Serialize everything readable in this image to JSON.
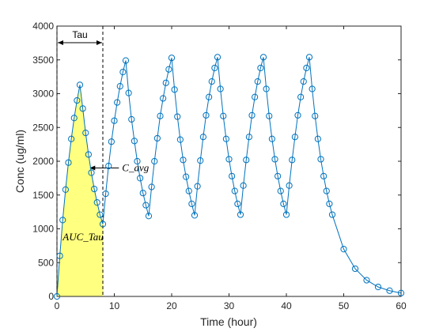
{
  "chart_data": {
    "type": "line",
    "title": "",
    "xlabel": "Time (hour)",
    "ylabel": "Conc (ug/ml)",
    "xlim": [
      0,
      60
    ],
    "ylim": [
      0,
      4000
    ],
    "xticks": [
      0,
      10,
      20,
      30,
      40,
      50,
      60
    ],
    "yticks": [
      0,
      500,
      1000,
      1500,
      2000,
      2500,
      3000,
      3500,
      4000
    ],
    "grid": false,
    "legend": "none",
    "colors": {
      "line": "#0072BD",
      "fill": "#FFFF80",
      "axis": "#262626",
      "annotation": "#000000"
    },
    "series": [
      {
        "x": [
          0,
          0.5,
          1,
          1.5,
          2,
          2.5,
          3,
          3.5,
          4,
          4.5,
          5,
          5.5,
          6,
          6.5,
          7,
          7.5,
          8,
          8.5,
          9,
          9.5,
          10,
          10.5,
          11,
          11.5,
          12,
          12.5,
          13,
          13.5,
          14,
          14.5,
          15,
          15.5,
          16,
          16.5,
          17,
          17.5,
          18,
          18.5,
          19,
          19.5,
          20,
          20.5,
          21,
          21.5,
          22,
          22.5,
          23,
          23.5,
          24,
          24.5,
          25,
          25.5,
          26,
          26.5,
          27,
          27.5,
          28,
          28.5,
          29,
          29.5,
          30,
          30.5,
          31,
          31.5,
          32,
          32.5,
          33,
          33.5,
          34,
          34.5,
          35,
          35.5,
          36,
          36.5,
          37,
          37.5,
          38,
          38.5,
          39,
          39.5,
          40,
          40.5,
          41,
          41.5,
          42,
          42.5,
          43,
          43.5,
          44,
          44.5,
          45,
          45.5,
          46,
          46.5,
          47,
          47.5,
          48,
          50,
          52,
          54,
          56,
          58,
          60
        ],
        "values": [
          0,
          600,
          1130,
          1580,
          1980,
          2330,
          2640,
          2900,
          3130,
          2780,
          2420,
          2100,
          1830,
          1590,
          1390,
          1210,
          1070,
          1520,
          1930,
          2290,
          2600,
          2870,
          3110,
          3320,
          3490,
          3010,
          2620,
          2300,
          2000,
          1750,
          1530,
          1350,
          1190,
          1620,
          2000,
          2340,
          2670,
          2930,
          3160,
          3360,
          3530,
          3060,
          2660,
          2320,
          2020,
          1770,
          1560,
          1370,
          1200,
          1630,
          2010,
          2360,
          2680,
          2950,
          3180,
          3380,
          3540,
          3070,
          2670,
          2330,
          2030,
          1780,
          1560,
          1370,
          1210,
          1640,
          2020,
          2360,
          2680,
          2950,
          3180,
          3380,
          3540,
          3070,
          2670,
          2330,
          2030,
          1780,
          1560,
          1370,
          1210,
          1640,
          2020,
          2360,
          2680,
          2950,
          3180,
          3380,
          3540,
          3070,
          2670,
          2330,
          2030,
          1780,
          1560,
          1370,
          1210,
          700,
          410,
          240,
          140,
          85,
          50
        ]
      }
    ],
    "auc_region": {
      "x_start": 0,
      "x_end": 8
    },
    "annotations": {
      "tau_label": "Tau",
      "tau_start": 0,
      "tau_end": 8,
      "c_avg_label": "C_avg",
      "c_avg_y": 1900,
      "auc_label": "AUC_Tau"
    }
  }
}
